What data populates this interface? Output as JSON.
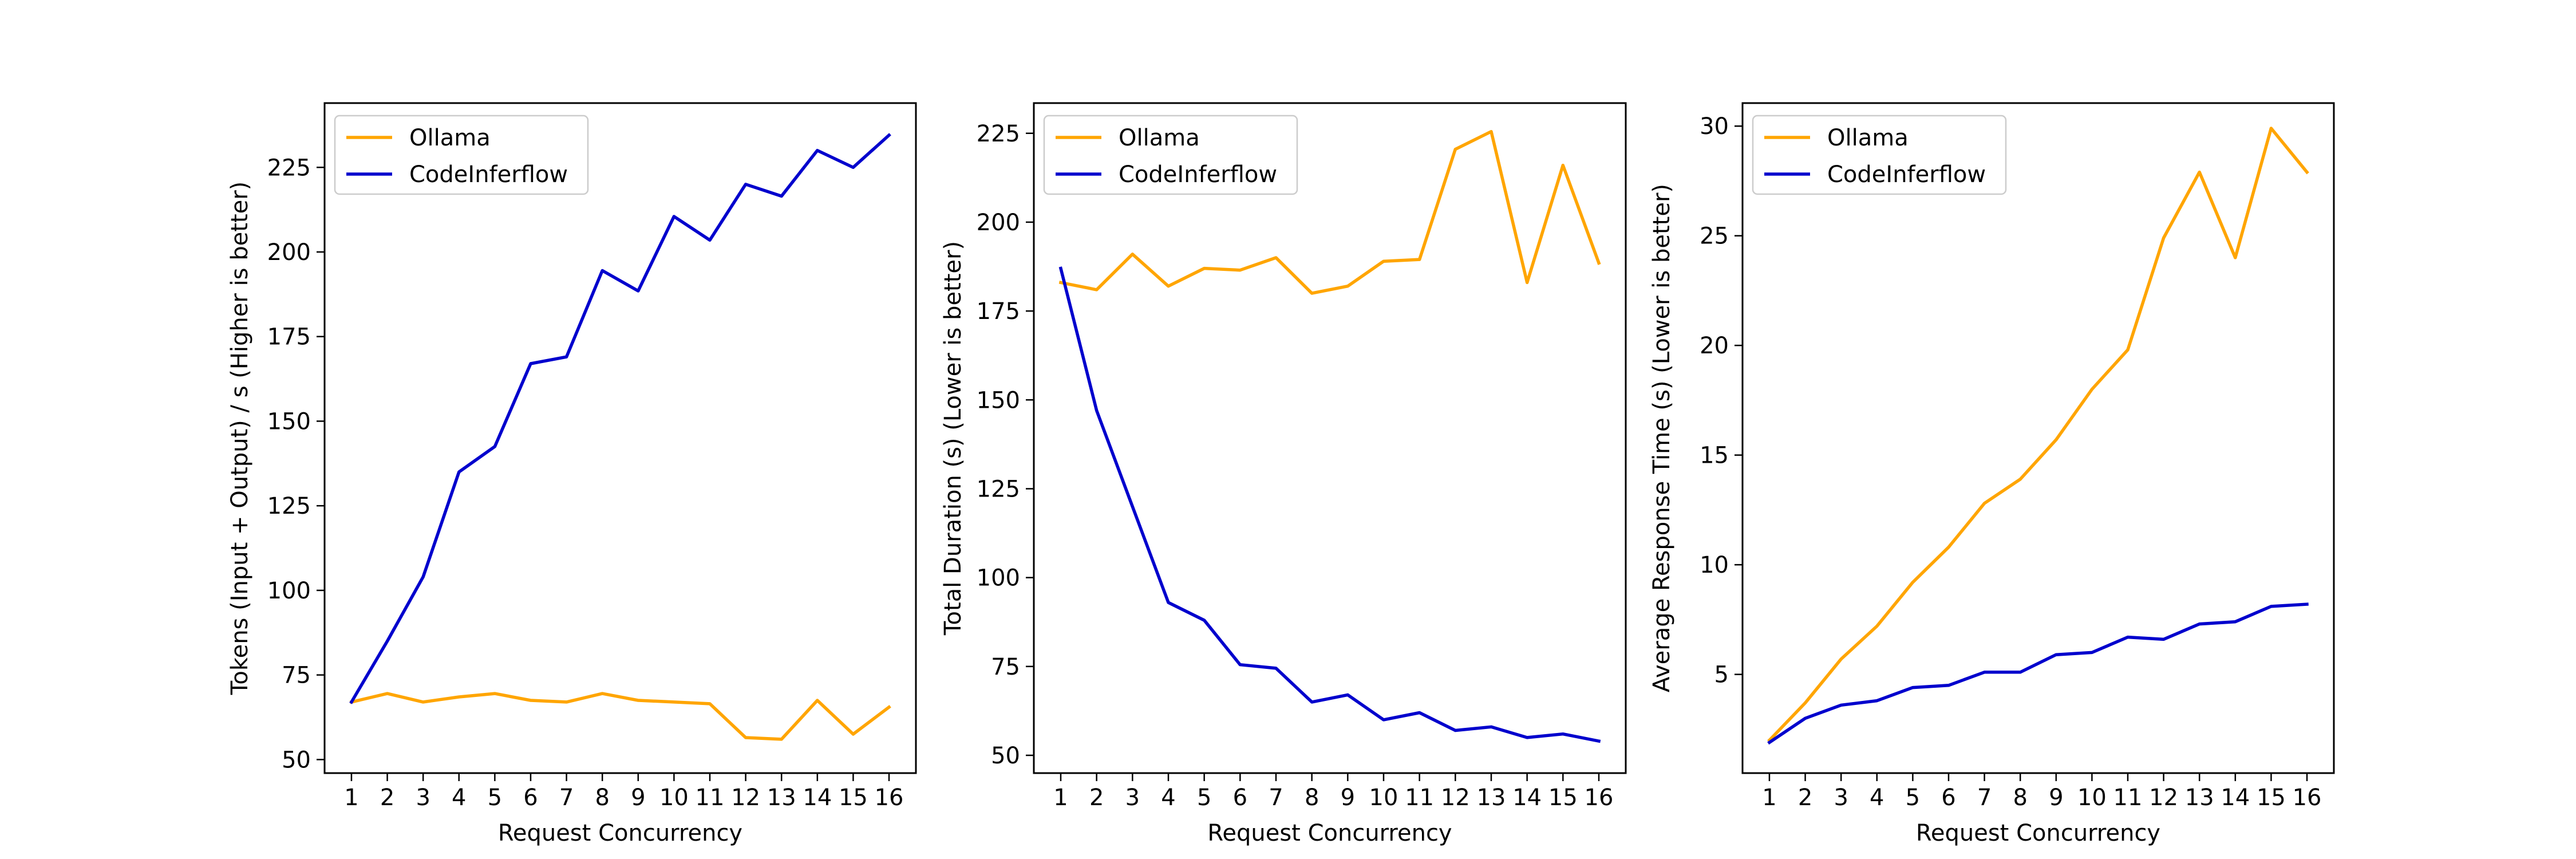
{
  "chart_data": [
    {
      "type": "line",
      "title": "",
      "xlabel": "Request Concurrency",
      "ylabel": "Tokens (Input + Output) / s (Higher is better)",
      "x": [
        1,
        2,
        3,
        4,
        5,
        6,
        7,
        8,
        9,
        10,
        11,
        12,
        13,
        14,
        15,
        16
      ],
      "xticks": [
        "1",
        "2",
        "3",
        "4",
        "5",
        "6",
        "7",
        "8",
        "9",
        "10",
        "11",
        "12",
        "13",
        "14",
        "15",
        "16"
      ],
      "ylim": [
        46,
        244
      ],
      "yticks": [
        50,
        75,
        100,
        125,
        150,
        175,
        200,
        225
      ],
      "ytick_labels": [
        "50",
        "75",
        "100",
        "125",
        "150",
        "175",
        "200",
        "225"
      ],
      "legend": "top-left",
      "grid": false,
      "series": [
        {
          "name": "Ollama",
          "color": "#FFA500",
          "values": [
            67,
            69.5,
            67,
            68.5,
            69.5,
            67.5,
            67,
            69.5,
            67.5,
            67,
            66.5,
            56.5,
            56,
            67.5,
            57.5,
            65.5
          ]
        },
        {
          "name": "CodeInferflow",
          "color": "#0000CD",
          "values": [
            67,
            85,
            104,
            135,
            142.5,
            167,
            169,
            194.5,
            188.5,
            210.5,
            203.5,
            220,
            216.5,
            230,
            225,
            234.5
          ]
        }
      ]
    },
    {
      "type": "line",
      "title": "",
      "xlabel": "Request Concurrency",
      "ylabel": "Total Duration (s) (Lower is better)",
      "x": [
        1,
        2,
        3,
        4,
        5,
        6,
        7,
        8,
        9,
        10,
        11,
        12,
        13,
        14,
        15,
        16
      ],
      "xticks": [
        "1",
        "2",
        "3",
        "4",
        "5",
        "6",
        "7",
        "8",
        "9",
        "10",
        "11",
        "12",
        "13",
        "14",
        "15",
        "16"
      ],
      "ylim": [
        45,
        233.5
      ],
      "yticks": [
        50,
        75,
        100,
        125,
        150,
        175,
        200,
        225
      ],
      "ytick_labels": [
        "50",
        "75",
        "100",
        "125",
        "150",
        "175",
        "200",
        "225"
      ],
      "legend": "top-left",
      "grid": false,
      "series": [
        {
          "name": "Ollama",
          "color": "#FFA500",
          "values": [
            183,
            181,
            191,
            182,
            187,
            186.5,
            190,
            180,
            182,
            189,
            189.5,
            220.5,
            225.5,
            183,
            216,
            188.5
          ]
        },
        {
          "name": "CodeInferflow",
          "color": "#0000CD",
          "values": [
            187,
            147,
            120,
            93,
            88,
            75.5,
            74.5,
            65,
            67,
            60,
            62,
            57,
            58,
            55,
            56,
            54
          ]
        }
      ]
    },
    {
      "type": "line",
      "title": "",
      "xlabel": "Request Concurrency",
      "ylabel": "Average Response Time (s) (Lower is better)",
      "x": [
        1,
        2,
        3,
        4,
        5,
        6,
        7,
        8,
        9,
        10,
        11,
        12,
        13,
        14,
        15,
        16
      ],
      "xticks": [
        "1",
        "2",
        "3",
        "4",
        "5",
        "6",
        "7",
        "8",
        "9",
        "10",
        "11",
        "12",
        "13",
        "14",
        "15",
        "16"
      ],
      "ylim": [
        0.5,
        31.05
      ],
      "yticks": [
        5,
        10,
        15,
        20,
        25,
        30
      ],
      "ytick_labels": [
        "5",
        "10",
        "15",
        "20",
        "25",
        "30"
      ],
      "legend": "top-left",
      "grid": false,
      "series": [
        {
          "name": "Ollama",
          "color": "#FFA500",
          "values": [
            2,
            3.7,
            5.7,
            7.2,
            9.2,
            10.8,
            12.8,
            13.9,
            15.7,
            18,
            19.8,
            24.9,
            27.9,
            24,
            29.9,
            27.9
          ]
        },
        {
          "name": "CodeInferflow",
          "color": "#0000CD",
          "values": [
            1.9,
            3,
            3.6,
            3.8,
            4.4,
            4.5,
            5.1,
            5.1,
            5.9,
            6,
            6.7,
            6.6,
            7.3,
            7.4,
            8.1,
            8.2
          ]
        }
      ]
    }
  ]
}
